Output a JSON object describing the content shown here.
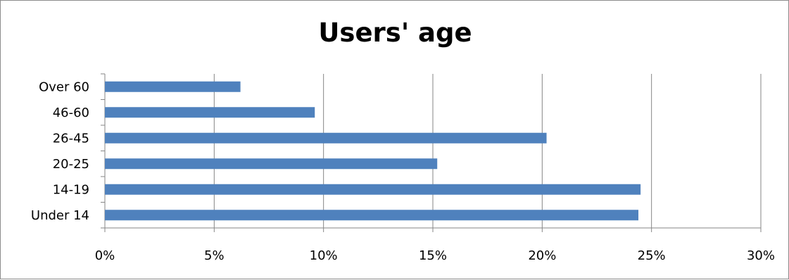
{
  "chart_data": {
    "type": "bar",
    "orientation": "horizontal",
    "title": "Users' age",
    "xlabel": "",
    "ylabel": "",
    "categories": [
      "Under 14",
      "14-19",
      "20-25",
      "26-45",
      "46-60",
      "Over 60"
    ],
    "values": [
      24.4,
      24.5,
      15.2,
      20.2,
      9.6,
      6.2
    ],
    "value_unit": "%",
    "xlim": [
      0,
      30
    ],
    "x_ticks": [
      "0%",
      "5%",
      "10%",
      "15%",
      "20%",
      "25%",
      "30%"
    ],
    "grid": "vertical major gridlines",
    "legend": "none",
    "colors": {
      "bar": "#4f81bd",
      "gridline": "#868686",
      "axis": "#868686",
      "border": "#8c8c8c"
    }
  }
}
